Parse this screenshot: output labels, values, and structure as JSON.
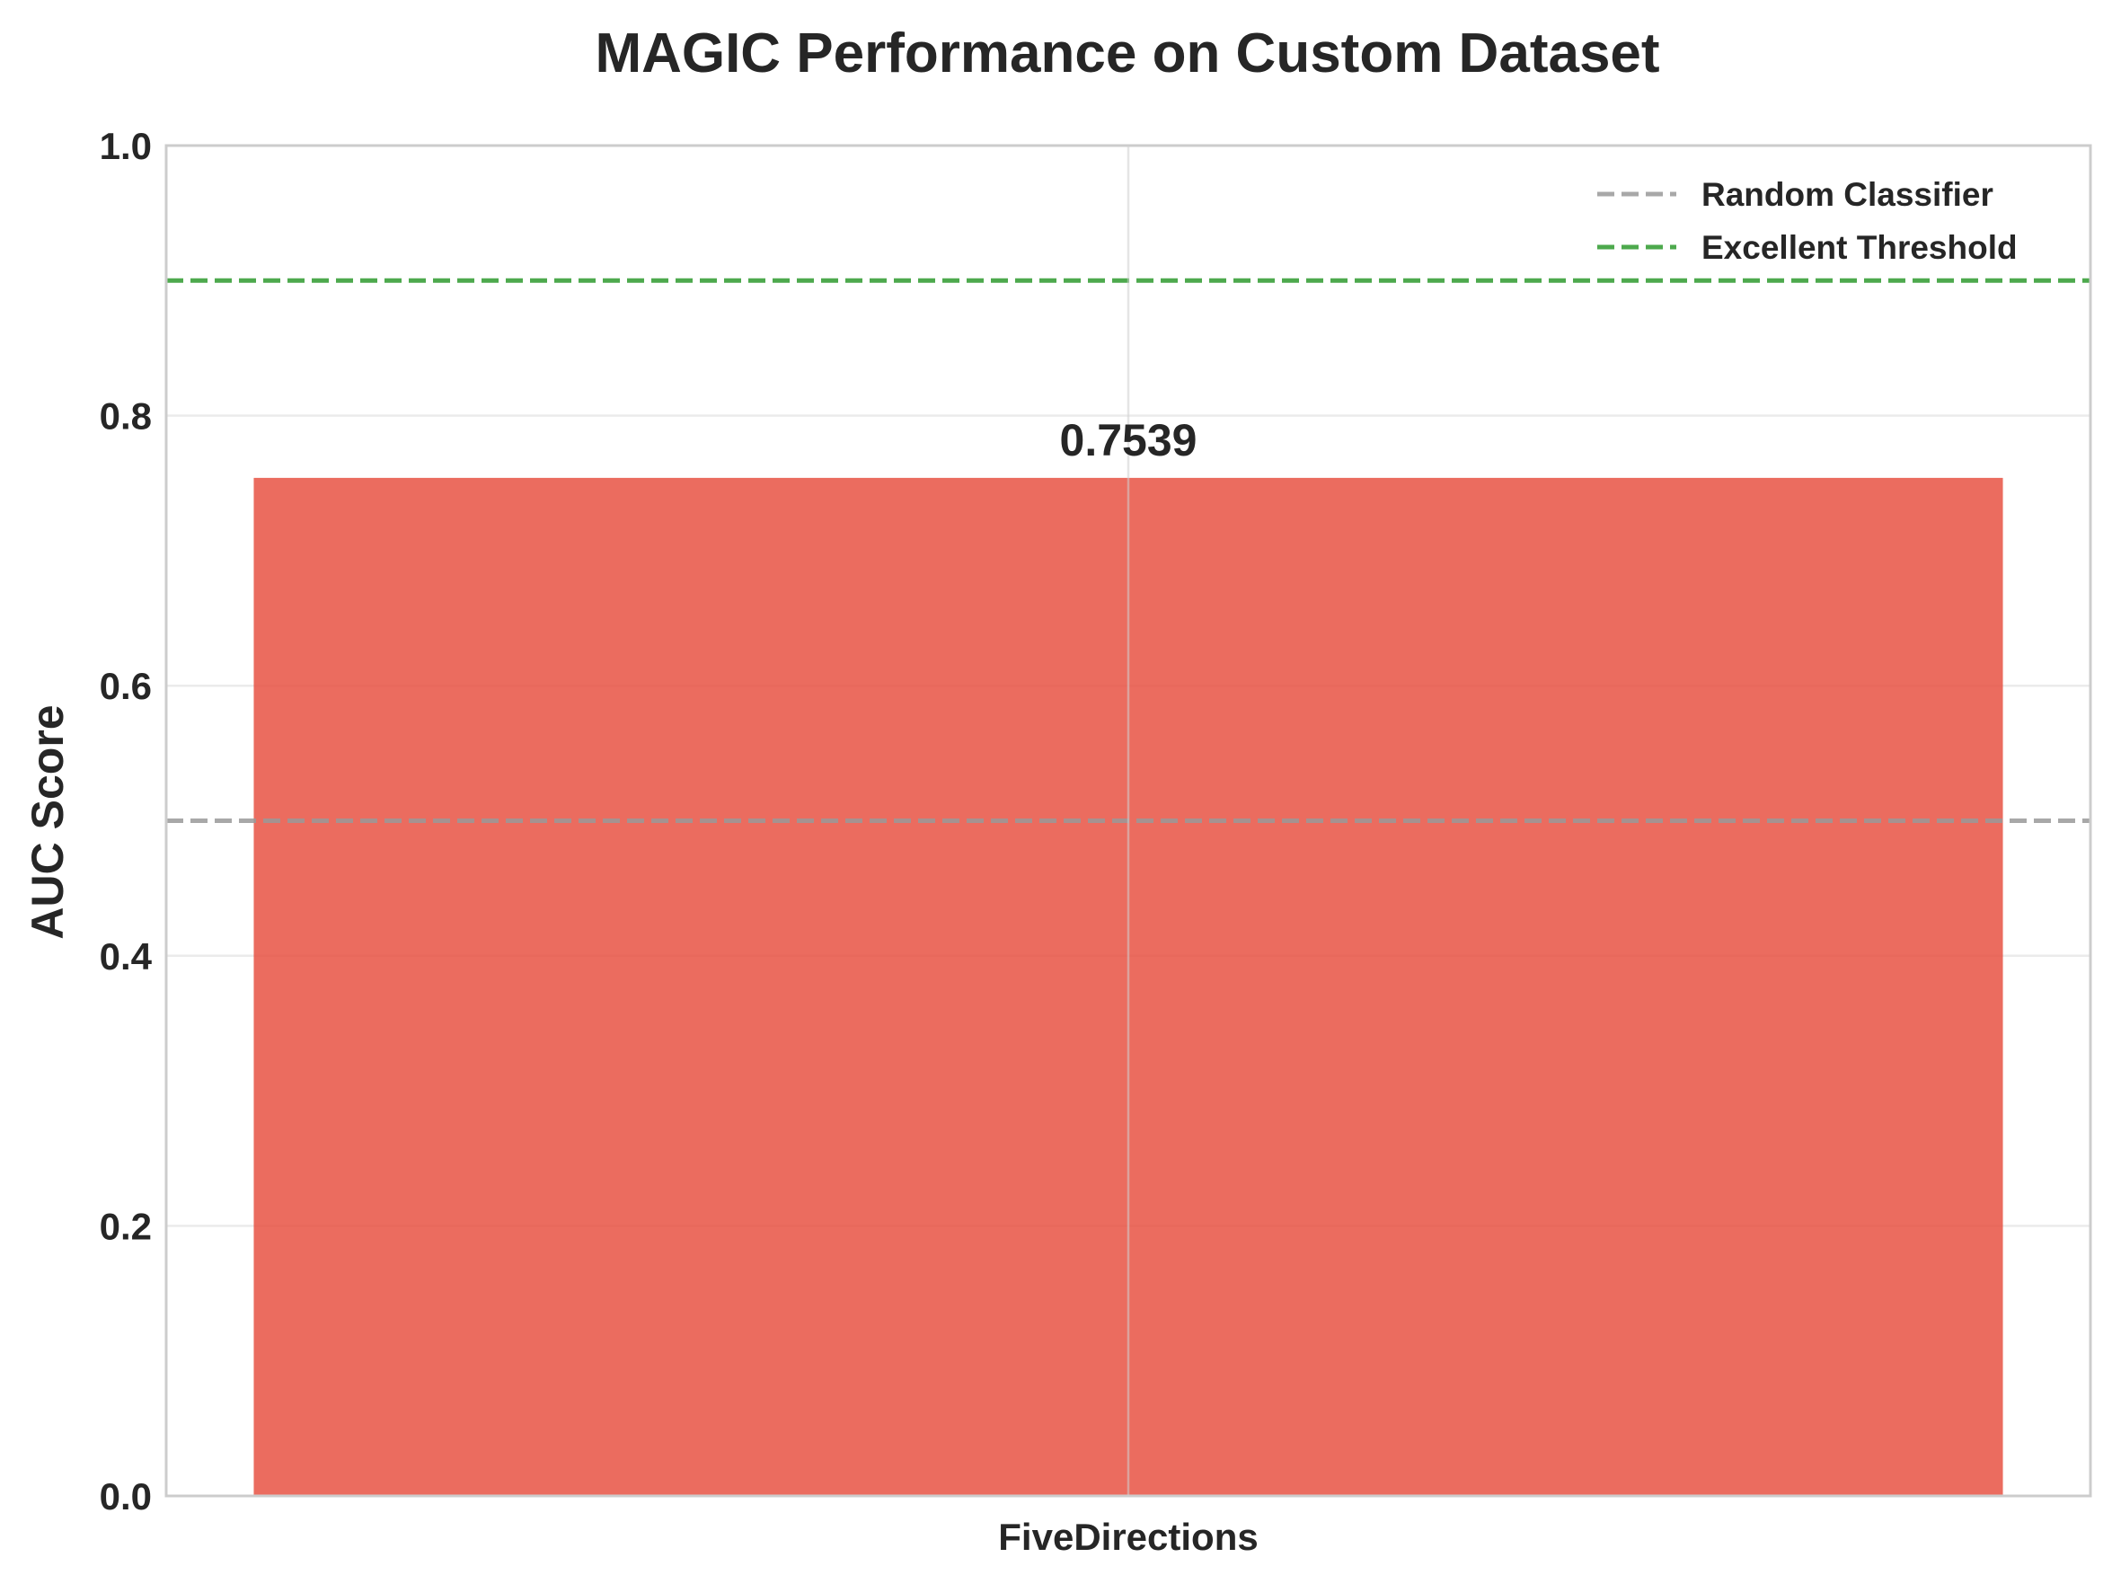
{
  "chart_data": {
    "type": "bar",
    "title": "MAGIC Performance on Custom Dataset",
    "xlabel": "",
    "ylabel": "AUC Score",
    "categories": [
      "FiveDirections"
    ],
    "values": [
      0.7539
    ],
    "data_labels": [
      "0.7539"
    ],
    "ylim": [
      0,
      1.0
    ],
    "yticks": [
      0.0,
      0.2,
      0.4,
      0.6,
      0.8,
      1.0
    ],
    "ytick_labels": [
      "0.0",
      "0.2",
      "0.4",
      "0.6",
      "0.8",
      "1.0"
    ],
    "bar_color": "#e74c3c",
    "reference_lines": [
      {
        "name": "Random Classifier",
        "y": 0.5,
        "color": "#999999",
        "style": "dashed"
      },
      {
        "name": "Excellent Threshold",
        "y": 0.9,
        "color": "#2e9a2e",
        "style": "dashed"
      }
    ],
    "grid": true,
    "legend_position": "top-right"
  }
}
